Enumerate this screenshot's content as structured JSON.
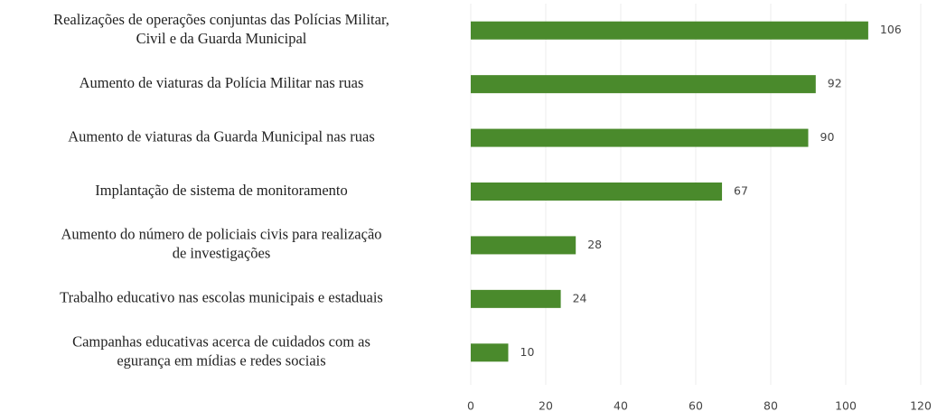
{
  "chart_data": {
    "type": "bar",
    "orientation": "horizontal",
    "categories": [
      [
        "Realizações de operações conjuntas das Polícias Militar,",
        "Civil e da Guarda Municipal"
      ],
      [
        "Aumento de viaturas da Polícia Militar nas ruas"
      ],
      [
        "Aumento de viaturas da Guarda Municipal nas ruas"
      ],
      [
        "Implantação de sistema de monitoramento"
      ],
      [
        "Aumento do número de policiais civis para realização",
        "de investigações"
      ],
      [
        "Trabalho educativo nas escolas municipais e estaduais"
      ],
      [
        "Campanhas educativas acerca de cuidados com as",
        "egurança em mídias e redes sociais"
      ]
    ],
    "values": [
      106,
      92,
      90,
      67,
      28,
      24,
      10
    ],
    "color": "#4a8a2c",
    "xlim": [
      0,
      120
    ],
    "xticks": [
      0,
      20,
      40,
      60,
      80,
      100,
      120
    ],
    "grid": true
  }
}
